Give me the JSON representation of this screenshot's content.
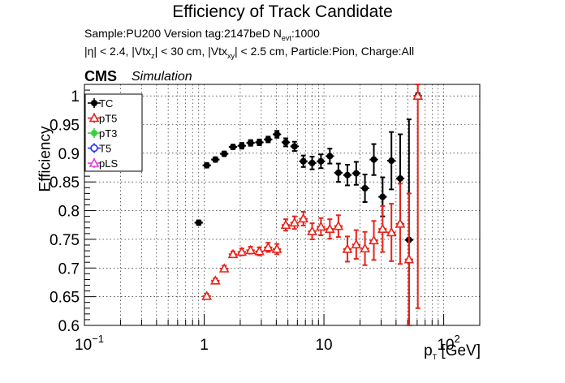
{
  "header": {
    "title": "Efficiency of Track Candidate",
    "line1": "Sample:PU200   Version tag:2147beD  N",
    "line1_sub": "evt",
    "line1_tail": ":1000",
    "line2_a": "|η| < 2.4, |Vtx",
    "line2_sub_z": "z",
    "line2_b": "| < 30 cm, |Vtx",
    "line2_sub_xy": "xy",
    "line2_c": "| < 2.5 cm, Particle:Pion, Charge:All",
    "cms": "CMS",
    "simulation": "Simulation"
  },
  "chart_data": {
    "type": "scatter",
    "title": "Efficiency of Track Candidate",
    "xlabel": "p",
    "xlabel_sub": "T",
    "xlabel_tail": " [GeV]",
    "ylabel": "Efficiency",
    "xscale": "log",
    "xlim": [
      0.1,
      200
    ],
    "ylim": [
      0.6,
      1.02
    ],
    "grid": true,
    "legend_position": "top-left",
    "x_tick_labels": [
      "10",
      "1",
      "10",
      "10"
    ],
    "x_tick_exponents": [
      "−1",
      "",
      "",
      "2"
    ],
    "y_ticks": [
      0.6,
      0.65,
      0.7,
      0.75,
      0.8,
      0.85,
      0.9,
      0.95,
      1
    ],
    "y_tick_labels": [
      "0.6",
      "0.65",
      "0.7",
      "0.75",
      "0.8",
      "0.85",
      "0.9",
      "0.95",
      "1"
    ],
    "legend": [
      {
        "label": "TC",
        "color": "#000000",
        "marker": "circle"
      },
      {
        "label": "pT5",
        "color": "#e8231b",
        "marker": "triangle"
      },
      {
        "label": "pT3",
        "color": "#3ad13a",
        "marker": "circle"
      },
      {
        "label": "T5",
        "color": "#1f2bff",
        "marker": "circle-open"
      },
      {
        "label": "pLS",
        "color": "#e040e0",
        "marker": "triangle"
      }
    ],
    "series": [
      {
        "name": "TC",
        "color": "#000000",
        "points": [
          {
            "x": 0.9,
            "y": 0.779,
            "err": 0.004
          },
          {
            "x": 1.05,
            "y": 0.879,
            "err": 0.004
          },
          {
            "x": 1.24,
            "y": 0.889,
            "err": 0.004
          },
          {
            "x": 1.47,
            "y": 0.899,
            "err": 0.004
          },
          {
            "x": 1.74,
            "y": 0.911,
            "err": 0.004
          },
          {
            "x": 2.06,
            "y": 0.913,
            "err": 0.005
          },
          {
            "x": 2.44,
            "y": 0.918,
            "err": 0.005
          },
          {
            "x": 2.89,
            "y": 0.919,
            "err": 0.005
          },
          {
            "x": 3.42,
            "y": 0.924,
            "err": 0.005
          },
          {
            "x": 4.05,
            "y": 0.933,
            "err": 0.006
          },
          {
            "x": 4.8,
            "y": 0.919,
            "err": 0.007
          },
          {
            "x": 5.68,
            "y": 0.912,
            "err": 0.008
          },
          {
            "x": 6.73,
            "y": 0.886,
            "err": 0.01
          },
          {
            "x": 7.97,
            "y": 0.883,
            "err": 0.011
          },
          {
            "x": 9.44,
            "y": 0.886,
            "err": 0.012
          },
          {
            "x": 11.2,
            "y": 0.895,
            "err": 0.013
          },
          {
            "x": 13.2,
            "y": 0.866,
            "err": 0.016
          },
          {
            "x": 15.7,
            "y": 0.862,
            "err": 0.018
          },
          {
            "x": 18.6,
            "y": 0.865,
            "err": 0.02
          },
          {
            "x": 22.0,
            "y": 0.839,
            "err": 0.024
          },
          {
            "x": 26.1,
            "y": 0.889,
            "err": 0.027
          },
          {
            "x": 30.9,
            "y": 0.824,
            "err": 0.034
          },
          {
            "x": 36.6,
            "y": 0.887,
            "err": 0.05
          },
          {
            "x": 43.3,
            "y": 0.856,
            "err": 0.077
          },
          {
            "x": 51.3,
            "y": 0.749,
            "err": 0.21
          },
          {
            "x": 60.8,
            "y": 1.0,
            "err": 0.005
          }
        ]
      },
      {
        "name": "pT5",
        "color": "#e8231b",
        "points": [
          {
            "x": 1.05,
            "y": 0.651,
            "err": 0.004
          },
          {
            "x": 1.24,
            "y": 0.678,
            "err": 0.004
          },
          {
            "x": 1.47,
            "y": 0.699,
            "err": 0.005
          },
          {
            "x": 1.74,
            "y": 0.724,
            "err": 0.005
          },
          {
            "x": 2.06,
            "y": 0.728,
            "err": 0.006
          },
          {
            "x": 2.44,
            "y": 0.731,
            "err": 0.006
          },
          {
            "x": 2.89,
            "y": 0.729,
            "err": 0.007
          },
          {
            "x": 3.42,
            "y": 0.736,
            "err": 0.008
          },
          {
            "x": 4.05,
            "y": 0.733,
            "err": 0.009
          },
          {
            "x": 4.8,
            "y": 0.775,
            "err": 0.01
          },
          {
            "x": 5.68,
            "y": 0.779,
            "err": 0.011
          },
          {
            "x": 6.73,
            "y": 0.786,
            "err": 0.012
          },
          {
            "x": 7.97,
            "y": 0.764,
            "err": 0.014
          },
          {
            "x": 9.44,
            "y": 0.772,
            "err": 0.015
          },
          {
            "x": 11.2,
            "y": 0.768,
            "err": 0.017
          },
          {
            "x": 13.2,
            "y": 0.773,
            "err": 0.019
          },
          {
            "x": 15.7,
            "y": 0.733,
            "err": 0.022
          },
          {
            "x": 18.6,
            "y": 0.741,
            "err": 0.025
          },
          {
            "x": 22.0,
            "y": 0.734,
            "err": 0.029
          },
          {
            "x": 26.1,
            "y": 0.748,
            "err": 0.034
          },
          {
            "x": 30.9,
            "y": 0.768,
            "err": 0.04
          },
          {
            "x": 36.6,
            "y": 0.762,
            "err": 0.05
          },
          {
            "x": 43.3,
            "y": 0.777,
            "err": 0.07
          },
          {
            "x": 51.3,
            "y": 0.715,
            "err": 0.115
          },
          {
            "x": 60.8,
            "y": 1.0,
            "err": 0.37
          }
        ]
      }
    ]
  }
}
